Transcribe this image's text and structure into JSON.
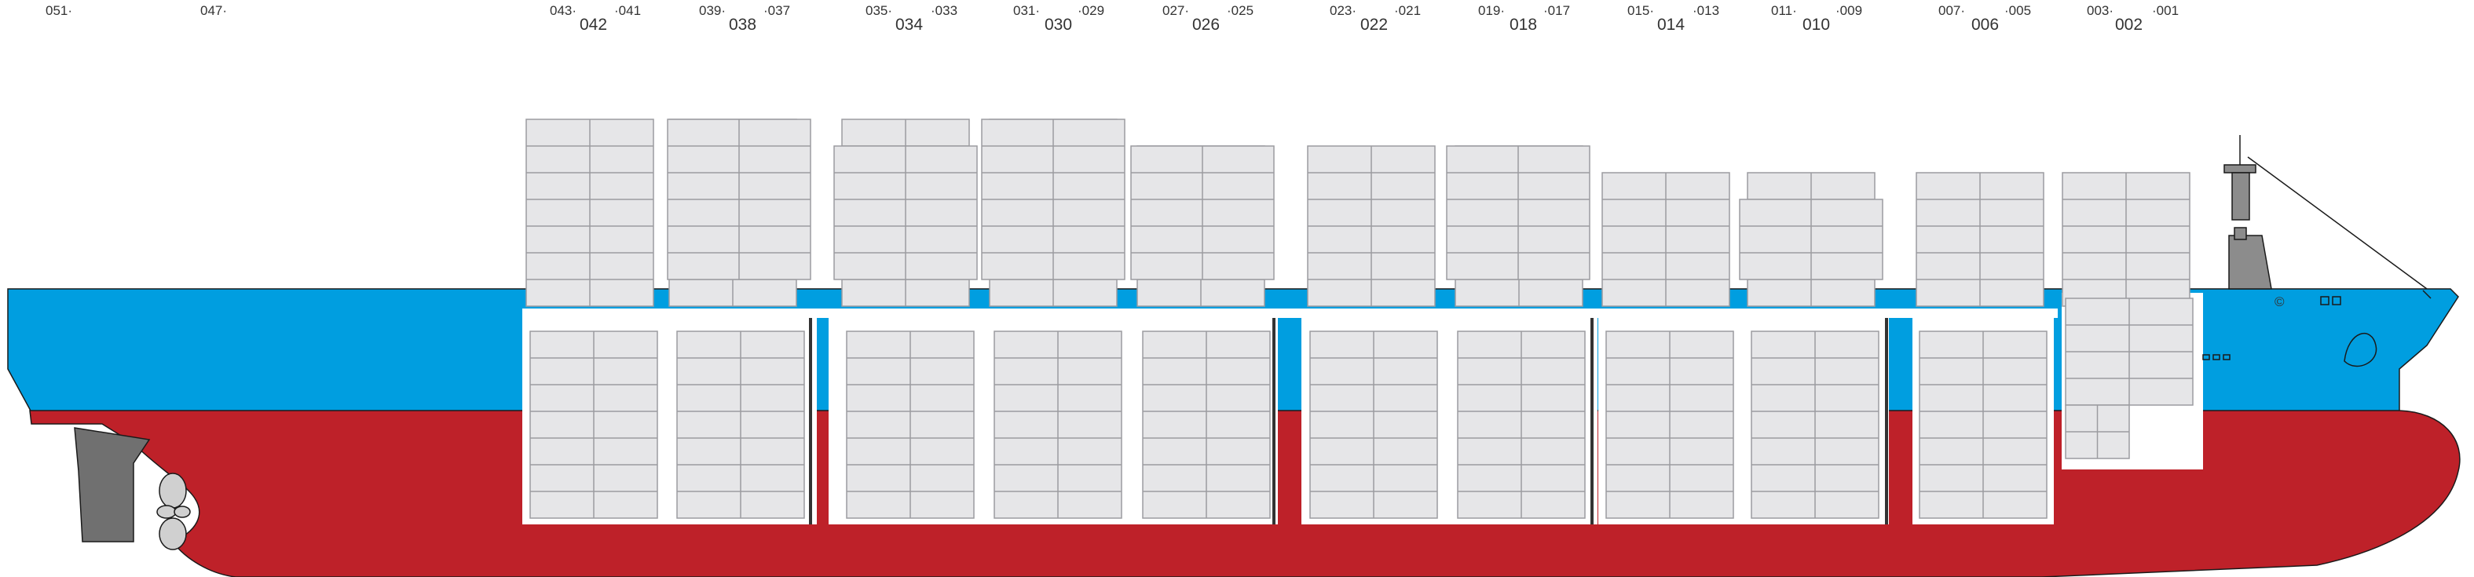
{
  "diagram": {
    "colors": {
      "topside": "#009ee0",
      "hull": "#be2129",
      "container": "#e6e6e8",
      "container_edge": "#9c9ca0",
      "hold": "#ffffff"
    },
    "small_labels": [
      "051",
      "047",
      "043",
      "041",
      "039",
      "037",
      "035",
      "033",
      "031",
      "029",
      "027",
      "025",
      "023",
      "021",
      "019",
      "017",
      "015",
      "013",
      "011",
      "009",
      "007",
      "005",
      "003",
      "001"
    ],
    "bay_labels": [
      "042",
      "038",
      "034",
      "030",
      "026",
      "022",
      "018",
      "014",
      "010",
      "006",
      "002"
    ],
    "bridge_mark": "©"
  }
}
